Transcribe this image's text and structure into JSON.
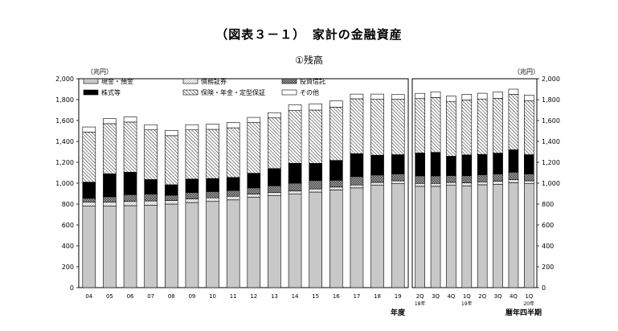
{
  "title": "（図表３－１）　家計の金融資産",
  "subtitle": "①残高",
  "unit_left": "（兆円）",
  "unit_right": "（兆円）",
  "xtitle_left": "年度",
  "xtitle_right": "暦年四半期",
  "chart_data": [
    {
      "type": "bar",
      "stacked": true,
      "panel": "annual",
      "ylim": [
        0,
        2000
      ],
      "yticks": [
        "0",
        "200",
        "400",
        "600",
        "800",
        "1,000",
        "1,200",
        "1,400",
        "1,600",
        "1,800",
        "2,000"
      ],
      "categories": [
        "04",
        "05",
        "06",
        "07",
        "08",
        "09",
        "10",
        "11",
        "12",
        "13",
        "14",
        "15",
        "16",
        "17",
        "18",
        "19"
      ],
      "series": [
        {
          "name": "現金・預金",
          "values": [
            780,
            780,
            785,
            790,
            800,
            815,
            825,
            840,
            865,
            880,
            895,
            915,
            935,
            955,
            980,
            995
          ]
        },
        {
          "name": "債務証券",
          "values": [
            40,
            40,
            40,
            40,
            35,
            35,
            35,
            35,
            30,
            30,
            30,
            30,
            28,
            28,
            28,
            28
          ]
        },
        {
          "name": "投資信託",
          "values": [
            35,
            50,
            65,
            65,
            50,
            60,
            60,
            55,
            60,
            65,
            75,
            80,
            65,
            80,
            70,
            65
          ]
        },
        {
          "name": "株式等",
          "values": [
            155,
            220,
            215,
            140,
            100,
            130,
            125,
            125,
            140,
            165,
            190,
            165,
            190,
            220,
            190,
            185
          ]
        },
        {
          "name": "保険・年金・定型保証",
          "values": [
            480,
            480,
            480,
            475,
            470,
            470,
            470,
            475,
            485,
            485,
            505,
            510,
            510,
            525,
            535,
            530
          ]
        },
        {
          "name": "その他",
          "values": [
            48,
            48,
            50,
            50,
            50,
            50,
            50,
            50,
            50,
            50,
            55,
            60,
            60,
            45,
            50,
            45
          ]
        }
      ],
      "legend_position": "top-left"
    },
    {
      "type": "bar",
      "stacked": true,
      "panel": "quarterly",
      "ylim": [
        0,
        2000
      ],
      "yticks": [
        "0",
        "200",
        "400",
        "600",
        "800",
        "1,000",
        "1,200",
        "1,400",
        "1,600",
        "1,800",
        "2,000"
      ],
      "categories": [
        "2Q",
        "3Q",
        "4Q",
        "1Q",
        "2Q",
        "3Q",
        "4Q",
        "1Q"
      ],
      "year_labels": [
        {
          "index": 0,
          "text": "18年"
        },
        {
          "index": 3,
          "text": "19年"
        },
        {
          "index": 7,
          "text": "20年"
        }
      ],
      "series": [
        {
          "name": "現金・預金",
          "values": [
            970,
            970,
            980,
            975,
            985,
            990,
            1005,
            995
          ]
        },
        {
          "name": "債務証券",
          "values": [
            28,
            28,
            28,
            28,
            28,
            28,
            28,
            28
          ]
        },
        {
          "name": "投資信託",
          "values": [
            72,
            72,
            65,
            68,
            68,
            70,
            72,
            65
          ]
        },
        {
          "name": "株式等",
          "values": [
            220,
            225,
            185,
            200,
            195,
            200,
            215,
            185
          ]
        },
        {
          "name": "保険・年金・定型保証",
          "values": [
            520,
            525,
            525,
            525,
            530,
            525,
            530,
            515
          ]
        },
        {
          "name": "その他",
          "values": [
            50,
            55,
            50,
            55,
            55,
            60,
            50,
            55
          ]
        }
      ]
    }
  ],
  "colors": {
    "cash": "#c8c8c8",
    "securities": "#ffffff",
    "funds": "#707070",
    "equity": "#000000",
    "insurance": "#ffffff",
    "other": "#ffffff"
  }
}
